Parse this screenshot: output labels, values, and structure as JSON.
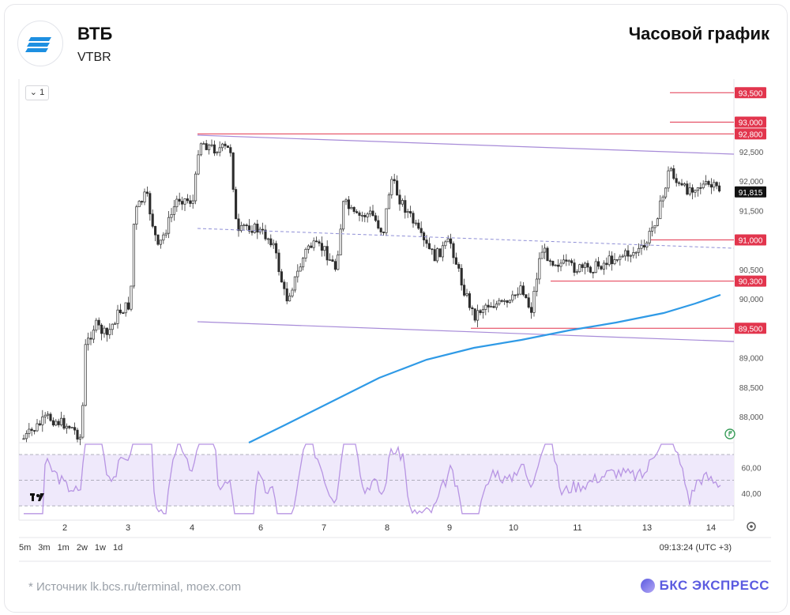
{
  "header": {
    "title": "ВТБ",
    "ticker": "VTBR",
    "period": "Часовой график",
    "interval": "1",
    "interval_caret": "⌄"
  },
  "footer": {
    "source": "*  Источник lk.bcs.ru/terminal, moex.com",
    "brand": "БКС ЭКСПРЕСС",
    "timeframes": [
      "5m",
      "3m",
      "1m",
      "2w",
      "1w",
      "1d"
    ],
    "clock": "09:13:24 (UTC +3)"
  },
  "colors": {
    "up": "#2c2c2c",
    "down": "#2c2c2c",
    "level": "#e2354d",
    "channel": "#a78bd8",
    "ma": "#2f9ae6",
    "rsi": "#b794e3",
    "rsi_band": "#efe9fb"
  },
  "icons": {
    "logo": "vtb-stripes-icon",
    "tradingview": "tradingview-icon",
    "settings": "gear-icon"
  },
  "chart_data": {
    "type": "candlestick",
    "x_labels": [
      "2",
      "3",
      "4",
      "6",
      "7",
      "8",
      "9",
      "10",
      "11",
      "13",
      "14"
    ],
    "ylim": [
      87.6,
      93.9
    ],
    "y_ticks": [
      "92,500",
      "92,000",
      "91,500",
      "90,500",
      "90,000",
      "89,000",
      "88,500",
      "88,000"
    ],
    "levels": [
      {
        "value": 93.5,
        "label": "93,500"
      },
      {
        "value": 93.0,
        "label": "93,000"
      },
      {
        "value": 92.8,
        "label": "92,800"
      },
      {
        "value": 91.0,
        "label": "91,000"
      },
      {
        "value": 90.3,
        "label": "90,300"
      },
      {
        "value": 89.5,
        "label": "89,500"
      }
    ],
    "last_price": {
      "value": 91.815,
      "label": "91,815"
    },
    "rsi": {
      "y_ticks": [
        "60,00",
        "40,00"
      ],
      "overbought": 70,
      "mid": 50,
      "oversold": 30
    }
  }
}
